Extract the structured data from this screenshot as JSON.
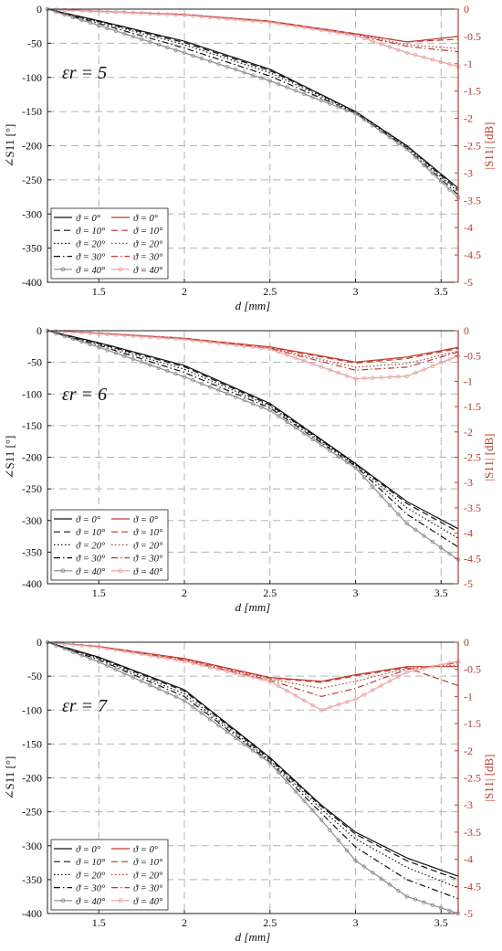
{
  "figure": {
    "colors": {
      "black": "#111111",
      "red": "#c0392b",
      "grid": "#b3b3b3",
      "gray": "#8c8c8c",
      "pink": "#e7a1a1"
    },
    "legend_black": [
      {
        "label": "ϑ = 0°",
        "dash": "solid"
      },
      {
        "label": "ϑ = 10°",
        "dash": "dashed"
      },
      {
        "label": "ϑ = 20°",
        "dash": "dotted"
      },
      {
        "label": "ϑ = 30°",
        "dash": "dashdot"
      },
      {
        "label": "ϑ = 40°",
        "dash": "circle"
      }
    ],
    "legend_red": [
      {
        "label": "ϑ = 0°",
        "dash": "solid"
      },
      {
        "label": "ϑ = 10°",
        "dash": "dashed"
      },
      {
        "label": "ϑ = 20°",
        "dash": "dotted"
      },
      {
        "label": "ϑ = 30°",
        "dash": "dashdot"
      },
      {
        "label": "ϑ = 40°",
        "dash": "circle"
      }
    ]
  },
  "chart_data": [
    {
      "type": "line",
      "annotation": "εr = 5",
      "xlabel": "d [mm]",
      "ylabel_left": "∠S11 [°]",
      "ylabel_right": "|S11| [dB]",
      "xlim": [
        1.2,
        3.6
      ],
      "ylim_left": [
        -400,
        0
      ],
      "ylim_right": [
        -5,
        0
      ],
      "x_ticks": [
        "1.5",
        "2",
        "2.5",
        "3",
        "3.5"
      ],
      "y_ticks_left": [
        "0",
        "-50",
        "-100",
        "-150",
        "-200",
        "-250",
        "-300",
        "-350",
        "-400"
      ],
      "y_ticks_right": [
        "0",
        "-0.5",
        "-1",
        "-1.5",
        "-2",
        "-2.5",
        "-3",
        "-3.5",
        "-4",
        "-4.5",
        "-5"
      ],
      "grid": true,
      "legend_position": "bottom-left",
      "x": [
        1.2,
        1.5,
        2.0,
        2.5,
        3.0,
        3.3,
        3.6
      ],
      "series_phase": [
        {
          "name": "ϑ = 0°",
          "values": [
            0,
            -17,
            -47,
            -88,
            -150,
            -200,
            -262
          ]
        },
        {
          "name": "ϑ = 10°",
          "values": [
            0,
            -18,
            -49,
            -90,
            -150,
            -200,
            -265
          ]
        },
        {
          "name": "ϑ = 20°",
          "values": [
            0,
            -19,
            -52,
            -93,
            -151,
            -201,
            -268
          ]
        },
        {
          "name": "ϑ = 30°",
          "values": [
            0,
            -21,
            -57,
            -98,
            -152,
            -203,
            -272
          ]
        },
        {
          "name": "ϑ = 40°",
          "values": [
            0,
            -24,
            -64,
            -105,
            -153,
            -205,
            -276
          ]
        }
      ],
      "series_mag": [
        {
          "name": "ϑ = 0°",
          "values": [
            0,
            -0.04,
            -0.1,
            -0.22,
            -0.45,
            -0.6,
            -0.5
          ]
        },
        {
          "name": "ϑ = 10°",
          "values": [
            0,
            -0.04,
            -0.1,
            -0.22,
            -0.45,
            -0.6,
            -0.55
          ]
        },
        {
          "name": "ϑ = 20°",
          "values": [
            0,
            -0.04,
            -0.1,
            -0.23,
            -0.46,
            -0.65,
            -0.72
          ]
        },
        {
          "name": "ϑ = 30°",
          "values": [
            0,
            -0.04,
            -0.1,
            -0.23,
            -0.47,
            -0.68,
            -0.78
          ]
        },
        {
          "name": "ϑ = 40°",
          "values": [
            0,
            -0.04,
            -0.11,
            -0.24,
            -0.48,
            -0.8,
            -1.05
          ]
        }
      ]
    },
    {
      "type": "line",
      "annotation": "εr = 6",
      "xlabel": "d [mm]",
      "ylabel_left": "∠S11 [°]",
      "ylabel_right": "|S11| [dB]",
      "xlim": [
        1.2,
        3.6
      ],
      "ylim_left": [
        -400,
        0
      ],
      "ylim_right": [
        -5,
        0
      ],
      "x_ticks": [
        "1.5",
        "2",
        "2.5",
        "3",
        "3.5"
      ],
      "y_ticks_left": [
        "0",
        "-50",
        "-100",
        "-150",
        "-200",
        "-250",
        "-300",
        "-350",
        "-400"
      ],
      "y_ticks_right": [
        "0",
        "-0.5",
        "-1",
        "-1.5",
        "-2",
        "-2.5",
        "-3",
        "-3.5",
        "-4",
        "-4.5",
        "-5"
      ],
      "grid": true,
      "legend_position": "bottom-left",
      "x": [
        1.2,
        1.5,
        2.0,
        2.5,
        3.0,
        3.3,
        3.6
      ],
      "series_phase": [
        {
          "name": "ϑ = 0°",
          "values": [
            0,
            -19,
            -55,
            -115,
            -210,
            -270,
            -313
          ]
        },
        {
          "name": "ϑ = 10°",
          "values": [
            0,
            -20,
            -57,
            -117,
            -211,
            -273,
            -318
          ]
        },
        {
          "name": "ϑ = 20°",
          "values": [
            0,
            -21,
            -61,
            -119,
            -212,
            -280,
            -328
          ]
        },
        {
          "name": "ϑ = 30°",
          "values": [
            0,
            -23,
            -66,
            -122,
            -214,
            -290,
            -342
          ]
        },
        {
          "name": "ϑ = 40°",
          "values": [
            0,
            -26,
            -73,
            -126,
            -217,
            -305,
            -362
          ]
        }
      ],
      "series_mag": [
        {
          "name": "ϑ = 0°",
          "values": [
            0,
            -0.05,
            -0.15,
            -0.32,
            -0.62,
            -0.52,
            -0.33
          ]
        },
        {
          "name": "ϑ = 10°",
          "values": [
            0,
            -0.05,
            -0.15,
            -0.33,
            -0.64,
            -0.55,
            -0.35
          ]
        },
        {
          "name": "ϑ = 20°",
          "values": [
            0,
            -0.05,
            -0.16,
            -0.34,
            -0.72,
            -0.65,
            -0.4
          ]
        },
        {
          "name": "ϑ = 30°",
          "values": [
            0,
            -0.05,
            -0.16,
            -0.35,
            -0.78,
            -0.72,
            -0.42
          ]
        },
        {
          "name": "ϑ = 40°",
          "values": [
            0,
            -0.06,
            -0.17,
            -0.36,
            -0.95,
            -0.9,
            -0.5
          ]
        }
      ]
    },
    {
      "type": "line",
      "annotation": "εr = 7",
      "xlabel": "d [mm]",
      "ylabel_left": "∠S11 [°]",
      "ylabel_right": "|S11| [dB]",
      "xlim": [
        1.2,
        3.6
      ],
      "ylim_left": [
        -400,
        0
      ],
      "ylim_right": [
        -5,
        0
      ],
      "x_ticks": [
        "1.5",
        "2",
        "2.5",
        "3",
        "3.5"
      ],
      "y_ticks_left": [
        "0",
        "-50",
        "-100",
        "-150",
        "-200",
        "-250",
        "-300",
        "-350",
        "-400"
      ],
      "y_ticks_right": [
        "0",
        "-0.5",
        "-1",
        "-1.5",
        "-2",
        "-2.5",
        "-3",
        "-3.5",
        "-4",
        "-4.5",
        "-5"
      ],
      "grid": true,
      "legend_position": "bottom-left",
      "x": [
        1.2,
        1.5,
        2.0,
        2.5,
        2.8,
        3.0,
        3.3,
        3.6
      ],
      "series_phase": [
        {
          "name": "ϑ = 0°",
          "values": [
            0,
            -22,
            -70,
            -170,
            -240,
            -280,
            -318,
            -345
          ]
        },
        {
          "name": "ϑ = 10°",
          "values": [
            0,
            -23,
            -72,
            -172,
            -242,
            -283,
            -322,
            -350
          ]
        },
        {
          "name": "ϑ = 20°",
          "values": [
            0,
            -24,
            -76,
            -174,
            -246,
            -290,
            -332,
            -362
          ]
        },
        {
          "name": "ϑ = 30°",
          "values": [
            0,
            -26,
            -80,
            -176,
            -252,
            -302,
            -350,
            -378
          ]
        },
        {
          "name": "ϑ = 40°",
          "values": [
            0,
            -29,
            -86,
            -178,
            -262,
            -322,
            -375,
            -400
          ]
        }
      ],
      "series_mag": [
        {
          "name": "ϑ = 0°",
          "values": [
            0,
            -0.08,
            -0.3,
            -0.65,
            -0.72,
            -0.6,
            -0.45,
            -0.45
          ]
        },
        {
          "name": "ϑ = 10°",
          "values": [
            0,
            -0.08,
            -0.31,
            -0.66,
            -0.74,
            -0.62,
            -0.47,
            -0.8
          ]
        },
        {
          "name": "ϑ = 20°",
          "values": [
            0,
            -0.08,
            -0.32,
            -0.68,
            -0.85,
            -0.72,
            -0.48,
            -0.42
          ]
        },
        {
          "name": "ϑ = 30°",
          "values": [
            0,
            -0.08,
            -0.33,
            -0.7,
            -1.0,
            -0.85,
            -0.5,
            -0.38
          ]
        },
        {
          "name": "ϑ = 40°",
          "values": [
            0,
            -0.09,
            -0.35,
            -0.72,
            -1.25,
            -1.05,
            -0.55,
            -0.35
          ]
        }
      ]
    }
  ]
}
